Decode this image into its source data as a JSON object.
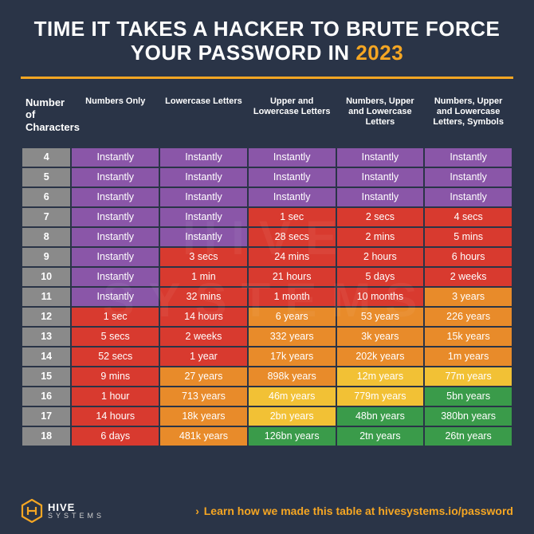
{
  "title_pre": "TIME IT TAKES A HACKER TO BRUTE FORCE YOUR PASSWORD IN ",
  "title_year": "2023",
  "colors": {
    "background": "#2a3447",
    "accent": "#f5a623",
    "row_header_bg": "#8a8a8a",
    "purple": "#8a56a8",
    "red": "#d83a2f",
    "orange": "#e88b2a",
    "yellow": "#f2c135",
    "green": "#3a9b4a"
  },
  "table": {
    "col_widths_pct": [
      10,
      18,
      18,
      18,
      18,
      18
    ],
    "header_fontsize": 11,
    "cell_fontsize": 12.5,
    "columns": [
      "Number of Characters",
      "Numbers Only",
      "Lowercase Letters",
      "Upper and Lowercase Letters",
      "Numbers, Upper and Lowercase Letters",
      "Numbers, Upper and Lowercase Letters, Symbols"
    ],
    "rows": [
      {
        "n": "4",
        "cells": [
          {
            "v": "Instantly",
            "c": "purple"
          },
          {
            "v": "Instantly",
            "c": "purple"
          },
          {
            "v": "Instantly",
            "c": "purple"
          },
          {
            "v": "Instantly",
            "c": "purple"
          },
          {
            "v": "Instantly",
            "c": "purple"
          }
        ]
      },
      {
        "n": "5",
        "cells": [
          {
            "v": "Instantly",
            "c": "purple"
          },
          {
            "v": "Instantly",
            "c": "purple"
          },
          {
            "v": "Instantly",
            "c": "purple"
          },
          {
            "v": "Instantly",
            "c": "purple"
          },
          {
            "v": "Instantly",
            "c": "purple"
          }
        ]
      },
      {
        "n": "6",
        "cells": [
          {
            "v": "Instantly",
            "c": "purple"
          },
          {
            "v": "Instantly",
            "c": "purple"
          },
          {
            "v": "Instantly",
            "c": "purple"
          },
          {
            "v": "Instantly",
            "c": "purple"
          },
          {
            "v": "Instantly",
            "c": "purple"
          }
        ]
      },
      {
        "n": "7",
        "cells": [
          {
            "v": "Instantly",
            "c": "purple"
          },
          {
            "v": "Instantly",
            "c": "purple"
          },
          {
            "v": "1 sec",
            "c": "red"
          },
          {
            "v": "2 secs",
            "c": "red"
          },
          {
            "v": "4 secs",
            "c": "red"
          }
        ]
      },
      {
        "n": "8",
        "cells": [
          {
            "v": "Instantly",
            "c": "purple"
          },
          {
            "v": "Instantly",
            "c": "purple"
          },
          {
            "v": "28 secs",
            "c": "red"
          },
          {
            "v": "2 mins",
            "c": "red"
          },
          {
            "v": "5 mins",
            "c": "red"
          }
        ]
      },
      {
        "n": "9",
        "cells": [
          {
            "v": "Instantly",
            "c": "purple"
          },
          {
            "v": "3 secs",
            "c": "red"
          },
          {
            "v": "24 mins",
            "c": "red"
          },
          {
            "v": "2 hours",
            "c": "red"
          },
          {
            "v": "6 hours",
            "c": "red"
          }
        ]
      },
      {
        "n": "10",
        "cells": [
          {
            "v": "Instantly",
            "c": "purple"
          },
          {
            "v": "1 min",
            "c": "red"
          },
          {
            "v": "21 hours",
            "c": "red"
          },
          {
            "v": "5 days",
            "c": "red"
          },
          {
            "v": "2 weeks",
            "c": "red"
          }
        ]
      },
      {
        "n": "11",
        "cells": [
          {
            "v": "Instantly",
            "c": "purple"
          },
          {
            "v": "32 mins",
            "c": "red"
          },
          {
            "v": "1 month",
            "c": "red"
          },
          {
            "v": "10 months",
            "c": "red"
          },
          {
            "v": "3 years",
            "c": "orange"
          }
        ]
      },
      {
        "n": "12",
        "cells": [
          {
            "v": "1 sec",
            "c": "red"
          },
          {
            "v": "14 hours",
            "c": "red"
          },
          {
            "v": "6 years",
            "c": "orange"
          },
          {
            "v": "53 years",
            "c": "orange"
          },
          {
            "v": "226 years",
            "c": "orange"
          }
        ]
      },
      {
        "n": "13",
        "cells": [
          {
            "v": "5 secs",
            "c": "red"
          },
          {
            "v": "2 weeks",
            "c": "red"
          },
          {
            "v": "332 years",
            "c": "orange"
          },
          {
            "v": "3k years",
            "c": "orange"
          },
          {
            "v": "15k years",
            "c": "orange"
          }
        ]
      },
      {
        "n": "14",
        "cells": [
          {
            "v": "52 secs",
            "c": "red"
          },
          {
            "v": "1 year",
            "c": "red"
          },
          {
            "v": "17k years",
            "c": "orange"
          },
          {
            "v": "202k years",
            "c": "orange"
          },
          {
            "v": "1m years",
            "c": "orange"
          }
        ]
      },
      {
        "n": "15",
        "cells": [
          {
            "v": "9 mins",
            "c": "red"
          },
          {
            "v": "27 years",
            "c": "orange"
          },
          {
            "v": "898k years",
            "c": "orange"
          },
          {
            "v": "12m years",
            "c": "yellow"
          },
          {
            "v": "77m years",
            "c": "yellow"
          }
        ]
      },
      {
        "n": "16",
        "cells": [
          {
            "v": "1 hour",
            "c": "red"
          },
          {
            "v": "713 years",
            "c": "orange"
          },
          {
            "v": "46m years",
            "c": "yellow"
          },
          {
            "v": "779m years",
            "c": "yellow"
          },
          {
            "v": "5bn years",
            "c": "green"
          }
        ]
      },
      {
        "n": "17",
        "cells": [
          {
            "v": "14 hours",
            "c": "red"
          },
          {
            "v": "18k years",
            "c": "orange"
          },
          {
            "v": "2bn years",
            "c": "yellow"
          },
          {
            "v": "48bn years",
            "c": "green"
          },
          {
            "v": "380bn years",
            "c": "green"
          }
        ]
      },
      {
        "n": "18",
        "cells": [
          {
            "v": "6 days",
            "c": "red"
          },
          {
            "v": "481k years",
            "c": "orange"
          },
          {
            "v": "126bn years",
            "c": "green"
          },
          {
            "v": "2tn years",
            "c": "green"
          },
          {
            "v": "26tn years",
            "c": "green"
          }
        ]
      }
    ]
  },
  "footer": {
    "brand_line1": "HIVE",
    "brand_line2": "SYSTEMS",
    "learn_arrow": "›",
    "learn_text": "Learn how we made this table at ",
    "learn_url": "hivesystems.io/password"
  },
  "watermark": "HIVE SYSTEMS"
}
